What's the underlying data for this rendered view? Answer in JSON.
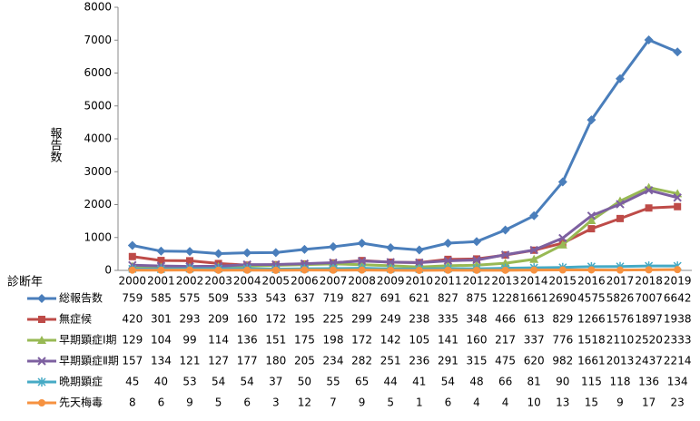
{
  "chart_data": {
    "type": "line",
    "y_label": "報告数",
    "x_label": "診断年",
    "categories": [
      "2000",
      "2001",
      "2002",
      "2003",
      "2004",
      "2005",
      "2006",
      "2007",
      "2008",
      "2009",
      "2010",
      "2011",
      "2012",
      "2013",
      "2014",
      "2015",
      "2016",
      "2017",
      "2018",
      "2019"
    ],
    "ylim": [
      0,
      8000
    ],
    "yticks": [
      0,
      1000,
      2000,
      3000,
      4000,
      5000,
      6000,
      7000,
      8000
    ],
    "series": [
      {
        "name": "総報告数",
        "color": "#4a7ebb",
        "marker": "diamond",
        "values": [
          759,
          585,
          575,
          509,
          533,
          543,
          637,
          719,
          827,
          691,
          621,
          827,
          875,
          1228,
          1661,
          2690,
          4575,
          5826,
          7007,
          6642
        ]
      },
      {
        "name": "無症候",
        "color": "#be4b48",
        "marker": "square",
        "values": [
          420,
          301,
          293,
          209,
          160,
          172,
          195,
          225,
          299,
          249,
          238,
          335,
          348,
          466,
          613,
          829,
          1266,
          1576,
          1897,
          1938
        ]
      },
      {
        "name": "早期顕症Ⅰ期",
        "color": "#98b954",
        "marker": "triangle",
        "values": [
          129,
          104,
          99,
          114,
          136,
          151,
          175,
          198,
          172,
          142,
          105,
          141,
          160,
          217,
          337,
          776,
          1518,
          2110,
          2520,
          2333
        ]
      },
      {
        "name": "早期顕症Ⅱ期",
        "color": "#7d60a0",
        "marker": "x",
        "values": [
          157,
          134,
          121,
          127,
          177,
          180,
          205,
          234,
          282,
          251,
          236,
          291,
          315,
          475,
          620,
          982,
          1661,
          2013,
          2437,
          2214
        ]
      },
      {
        "name": "晩期顕症",
        "color": "#46aac5",
        "marker": "star",
        "values": [
          45,
          40,
          53,
          54,
          54,
          37,
          50,
          55,
          65,
          44,
          41,
          54,
          48,
          66,
          81,
          90,
          115,
          118,
          136,
          134
        ]
      },
      {
        "name": "先天梅毒",
        "color": "#f69240",
        "marker": "circle",
        "values": [
          8,
          6,
          9,
          5,
          6,
          3,
          12,
          7,
          9,
          5,
          1,
          6,
          4,
          4,
          10,
          13,
          15,
          9,
          17,
          23
        ]
      }
    ]
  }
}
